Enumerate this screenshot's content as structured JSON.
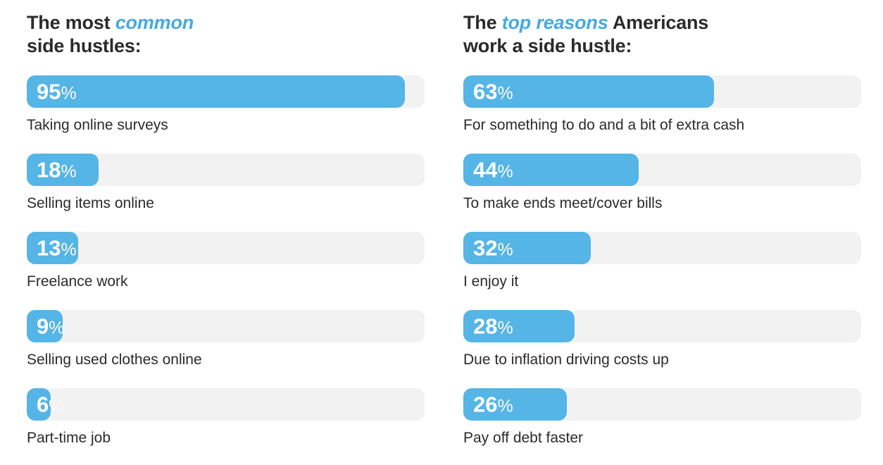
{
  "colors": {
    "bar": "#55B5E6",
    "track": "#F2F2F2",
    "accent": "#45AADF",
    "text": "#2B2B2B",
    "value_text": "#FFFFFF",
    "background": "#FFFFFF"
  },
  "titles": [
    {
      "pre": "The most ",
      "accent": "common",
      "post": "",
      "line2": "side hustles:"
    },
    {
      "pre": "The ",
      "accent": "top reasons",
      "post": " Americans",
      "line2": "work a side hustle:"
    }
  ],
  "chart_data": [
    {
      "type": "bar",
      "orientation": "horizontal",
      "title": "The most common side hustles:",
      "unit": "%",
      "xlim": [
        0,
        100
      ],
      "grid": false,
      "legend": false,
      "categories": [
        "Taking online surveys",
        "Selling items online",
        "Freelance work",
        "Selling used clothes online",
        "Part-time job"
      ],
      "values": [
        95,
        18,
        13,
        9,
        6
      ]
    },
    {
      "type": "bar",
      "orientation": "horizontal",
      "title": "The top reasons Americans work a side hustle:",
      "unit": "%",
      "xlim": [
        0,
        100
      ],
      "grid": false,
      "legend": false,
      "categories": [
        "For something to do and a bit of extra cash",
        "To make ends meet/cover bills",
        "I enjoy it",
        "Due to inflation driving costs up",
        "Pay off debt faster"
      ],
      "values": [
        63,
        44,
        32,
        28,
        26
      ]
    }
  ]
}
